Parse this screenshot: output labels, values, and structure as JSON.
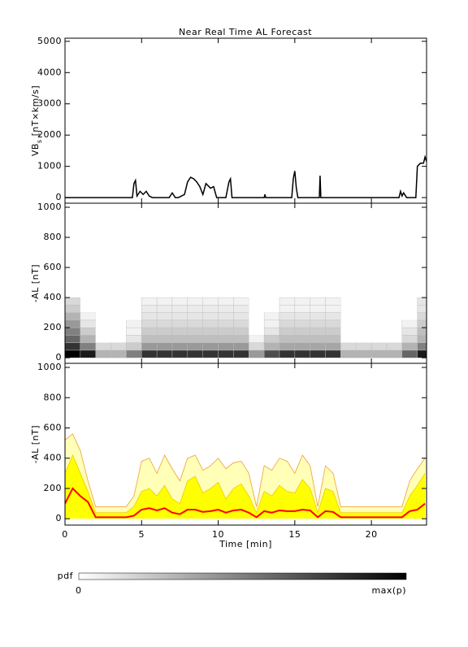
{
  "title": "Near Real Time AL Forecast",
  "chart_data": [
    {
      "type": "line",
      "ylabel": "VB",
      "ylabel_sub": "s",
      "ylabel_unit": "[nT×km/s]",
      "xlim": [
        0,
        23.6
      ],
      "xticks": [
        0,
        5,
        10,
        15,
        20
      ],
      "ylim": [
        -180,
        5100
      ],
      "yticks": [
        0,
        1000,
        2000,
        3000,
        4000,
        5000
      ],
      "color": "#000000",
      "x": [
        0,
        4.4,
        4.5,
        4.6,
        4.7,
        4.9,
        5.1,
        5.3,
        5.5,
        5.7,
        6.8,
        7.0,
        7.2,
        7.4,
        7.8,
        8.0,
        8.2,
        8.4,
        8.6,
        8.8,
        9.0,
        9.2,
        9.5,
        9.7,
        9.9,
        10.1,
        10.5,
        10.7,
        10.8,
        10.9,
        13.0,
        13.05,
        13.1,
        14.8,
        14.9,
        15.0,
        15.1,
        15.2,
        16.6,
        16.65,
        16.7,
        21.8,
        21.9,
        22.0,
        22.1,
        22.3,
        22.9,
        23.0,
        23.2,
        23.4,
        23.5,
        23.6
      ],
      "values": [
        0,
        0,
        450,
        550,
        50,
        200,
        100,
        200,
        50,
        0,
        0,
        150,
        0,
        0,
        100,
        500,
        650,
        600,
        500,
        350,
        100,
        450,
        300,
        350,
        0,
        0,
        0,
        500,
        600,
        0,
        0,
        100,
        0,
        0,
        600,
        850,
        300,
        0,
        0,
        700,
        0,
        0,
        200,
        50,
        150,
        0,
        0,
        1000,
        1100,
        1100,
        1300,
        1150
      ]
    },
    {
      "type": "heatmap",
      "ylabel": "-AL [nT]",
      "xlim": [
        0,
        23.6
      ],
      "xticks": [
        0,
        5,
        10,
        15,
        20
      ],
      "ylim": [
        -37,
        1027
      ],
      "yticks": [
        0,
        200,
        400,
        600,
        800,
        1000
      ],
      "bins": [
        0,
        1,
        2,
        3,
        4,
        5,
        6,
        7,
        8,
        9,
        10,
        11,
        12,
        13,
        14,
        15,
        16,
        17,
        18,
        19,
        20,
        21,
        22,
        23,
        24
      ],
      "ybins": [
        0,
        50,
        100,
        150,
        200,
        250,
        300,
        350,
        400
      ],
      "z": [
        [
          1,
          0.8,
          0.6,
          0.5,
          0.4,
          0.3,
          0.2,
          0.15
        ],
        [
          0.9,
          0.5,
          0.3,
          0.2,
          0.1,
          0.05,
          0,
          0
        ],
        [
          0.3,
          0.15,
          0,
          0,
          0,
          0,
          0,
          0
        ],
        [
          0.3,
          0.15,
          0,
          0,
          0,
          0,
          0,
          0
        ],
        [
          0.5,
          0.2,
          0.1,
          0.05,
          0.05,
          0,
          0,
          0
        ],
        [
          0.8,
          0.4,
          0.25,
          0.2,
          0.15,
          0.1,
          0.08,
          0.05
        ],
        [
          0.8,
          0.4,
          0.25,
          0.2,
          0.15,
          0.1,
          0.08,
          0.05
        ],
        [
          0.8,
          0.4,
          0.25,
          0.2,
          0.15,
          0.1,
          0.08,
          0.05
        ],
        [
          0.8,
          0.4,
          0.25,
          0.2,
          0.15,
          0.1,
          0.08,
          0.05
        ],
        [
          0.8,
          0.4,
          0.25,
          0.2,
          0.15,
          0.1,
          0.08,
          0.05
        ],
        [
          0.8,
          0.4,
          0.25,
          0.2,
          0.15,
          0.1,
          0.08,
          0.05
        ],
        [
          0.8,
          0.4,
          0.25,
          0.2,
          0.15,
          0.1,
          0.08,
          0.05
        ],
        [
          0.4,
          0.15,
          0.05,
          0,
          0,
          0,
          0,
          0
        ],
        [
          0.7,
          0.3,
          0.2,
          0.1,
          0.05,
          0.05,
          0,
          0
        ],
        [
          0.8,
          0.35,
          0.25,
          0.2,
          0.15,
          0.1,
          0.05,
          0.05
        ],
        [
          0.8,
          0.35,
          0.25,
          0.2,
          0.15,
          0.1,
          0.05,
          0.05
        ],
        [
          0.8,
          0.35,
          0.25,
          0.2,
          0.15,
          0.1,
          0.05,
          0.05
        ],
        [
          0.8,
          0.35,
          0.25,
          0.2,
          0.15,
          0.1,
          0.05,
          0.05
        ],
        [
          0.3,
          0.15,
          0,
          0,
          0,
          0,
          0,
          0
        ],
        [
          0.3,
          0.15,
          0,
          0,
          0,
          0,
          0,
          0
        ],
        [
          0.3,
          0.15,
          0,
          0,
          0,
          0,
          0,
          0
        ],
        [
          0.3,
          0.15,
          0,
          0,
          0,
          0,
          0,
          0
        ],
        [
          0.6,
          0.3,
          0.15,
          0.1,
          0.05,
          0,
          0,
          0
        ],
        [
          0.9,
          0.5,
          0.3,
          0.25,
          0.2,
          0.15,
          0.1,
          0.1
        ]
      ]
    },
    {
      "type": "bands",
      "ylabel": "-AL [nT]",
      "xlabel": "Time [min]",
      "xlim": [
        0,
        23.6
      ],
      "xticks": [
        0,
        5,
        10,
        15,
        20
      ],
      "ylim": [
        -42,
        1027
      ],
      "yticks": [
        0,
        200,
        400,
        600,
        800,
        1000
      ],
      "x": [
        0,
        0.5,
        1,
        1.5,
        2,
        2.5,
        3,
        3.5,
        4,
        4.5,
        5,
        5.5,
        6,
        6.5,
        7,
        7.5,
        8,
        8.5,
        9,
        9.5,
        10,
        10.5,
        11,
        11.5,
        12,
        12.5,
        13,
        13.5,
        14,
        14.5,
        15,
        15.5,
        16,
        16.5,
        17,
        17.5,
        18,
        18.5,
        19,
        19.5,
        20,
        20.5,
        21,
        21.5,
        22,
        22.5,
        23,
        23.5
      ],
      "series": [
        {
          "color": "#f0a030",
          "fill": "#ffffb8",
          "values": [
            520,
            560,
            450,
            250,
            80,
            80,
            80,
            80,
            80,
            150,
            380,
            400,
            300,
            420,
            330,
            250,
            400,
            420,
            320,
            350,
            400,
            330,
            370,
            380,
            300,
            80,
            350,
            320,
            400,
            380,
            300,
            420,
            350,
            80,
            350,
            300,
            80,
            80,
            80,
            80,
            80,
            80,
            80,
            80,
            80,
            250,
            330,
            400
          ]
        },
        {
          "color": "#f0c800",
          "fill": "#ffff00",
          "values": [
            300,
            420,
            300,
            180,
            40,
            40,
            40,
            40,
            40,
            80,
            180,
            200,
            150,
            220,
            130,
            100,
            250,
            280,
            170,
            200,
            240,
            130,
            200,
            230,
            150,
            40,
            180,
            150,
            220,
            180,
            170,
            260,
            200,
            40,
            200,
            180,
            40,
            40,
            40,
            40,
            40,
            40,
            40,
            40,
            40,
            150,
            220,
            300
          ]
        },
        {
          "color": "#ff0000",
          "values": [
            100,
            200,
            150,
            110,
            10,
            10,
            10,
            10,
            10,
            20,
            60,
            70,
            55,
            70,
            40,
            30,
            60,
            60,
            45,
            50,
            60,
            40,
            55,
            60,
            40,
            10,
            50,
            40,
            55,
            50,
            50,
            60,
            55,
            10,
            50,
            45,
            10,
            10,
            10,
            10,
            10,
            10,
            10,
            10,
            10,
            50,
            60,
            100
          ]
        }
      ]
    }
  ],
  "colorbar": {
    "label": "pdf",
    "min_label": "0",
    "max_label": "max(p)"
  }
}
